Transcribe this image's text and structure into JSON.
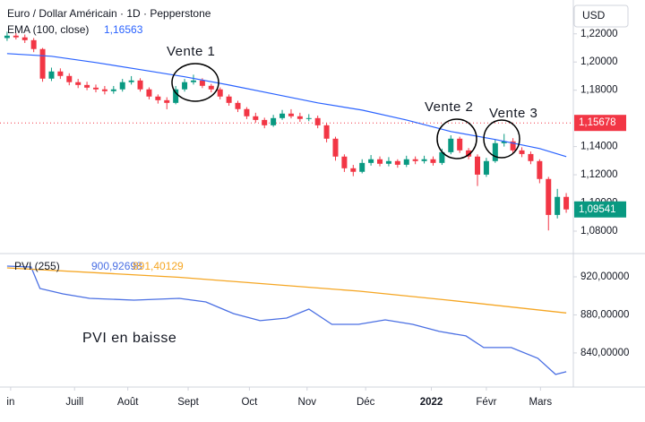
{
  "chart_data": [
    {
      "type": "candlestick",
      "title": "Euro / Dollar Américain · 1D · Pepperstone",
      "currency": "USD",
      "open": [
        1.217,
        1.2187,
        1.2175,
        1.2155,
        1.2092,
        1.1882,
        1.1933,
        1.1901,
        1.1857,
        1.1837,
        1.1818,
        1.1806,
        1.1793,
        1.1806,
        1.1857,
        1.1869,
        1.1806,
        1.1755,
        1.1729,
        1.171,
        1.1806,
        1.1857,
        1.1869,
        1.1831,
        1.1806,
        1.1755,
        1.171,
        1.1666,
        1.1615,
        1.1589,
        1.1551,
        1.1602,
        1.1634,
        1.1615,
        1.1596,
        1.1602,
        1.1551,
        1.1456,
        1.1329,
        1.1246,
        1.1221,
        1.1284,
        1.131,
        1.1278,
        1.1297,
        1.1271,
        1.131,
        1.1297,
        1.131,
        1.1284,
        1.136,
        1.1456,
        1.1373,
        1.1329,
        1.1201,
        1.1297,
        1.1424,
        1.1437,
        1.1373,
        1.1347,
        1.1297,
        1.117,
        1.0915,
        1.1043
      ],
      "high": [
        1.2215,
        1.2205,
        1.2195,
        1.217,
        1.21,
        1.196,
        1.1955,
        1.192,
        1.188,
        1.186,
        1.184,
        1.183,
        1.183,
        1.188,
        1.19,
        1.1885,
        1.182,
        1.177,
        1.175,
        1.183,
        1.188,
        1.191,
        1.1885,
        1.1845,
        1.182,
        1.177,
        1.1725,
        1.168,
        1.164,
        1.1605,
        1.1625,
        1.166,
        1.1665,
        1.164,
        1.163,
        1.162,
        1.1565,
        1.147,
        1.1345,
        1.127,
        1.131,
        1.134,
        1.133,
        1.1325,
        1.131,
        1.1335,
        1.133,
        1.1335,
        1.133,
        1.1385,
        1.148,
        1.147,
        1.139,
        1.1345,
        1.132,
        1.145,
        1.149,
        1.146,
        1.1395,
        1.1365,
        1.131,
        1.1185,
        1.11,
        1.107
      ],
      "low": [
        1.215,
        1.216,
        1.2135,
        1.207,
        1.186,
        1.1865,
        1.188,
        1.1835,
        1.1815,
        1.18,
        1.1785,
        1.177,
        1.1775,
        1.179,
        1.184,
        1.179,
        1.1735,
        1.1705,
        1.1665,
        1.17,
        1.179,
        1.184,
        1.1815,
        1.1785,
        1.1735,
        1.169,
        1.1645,
        1.1595,
        1.157,
        1.153,
        1.154,
        1.159,
        1.16,
        1.1575,
        1.158,
        1.153,
        1.143,
        1.13,
        1.122,
        1.119,
        1.121,
        1.1265,
        1.126,
        1.126,
        1.125,
        1.1255,
        1.1275,
        1.128,
        1.1265,
        1.127,
        1.1345,
        1.1355,
        1.131,
        1.112,
        1.1185,
        1.1285,
        1.14,
        1.1355,
        1.1325,
        1.1275,
        1.114,
        1.0805,
        1.089,
        1.093
      ],
      "close": [
        1.2187,
        1.2175,
        1.2155,
        1.2092,
        1.1882,
        1.1933,
        1.1901,
        1.1857,
        1.1837,
        1.1818,
        1.1806,
        1.1793,
        1.1806,
        1.1857,
        1.1869,
        1.1806,
        1.1755,
        1.1729,
        1.171,
        1.1806,
        1.1857,
        1.1869,
        1.1831,
        1.1806,
        1.1755,
        1.171,
        1.1666,
        1.1615,
        1.1589,
        1.1551,
        1.1602,
        1.1634,
        1.1615,
        1.1596,
        1.1602,
        1.1551,
        1.1456,
        1.1329,
        1.1246,
        1.1221,
        1.1284,
        1.131,
        1.1278,
        1.1297,
        1.1271,
        1.131,
        1.1297,
        1.131,
        1.1284,
        1.136,
        1.1456,
        1.1373,
        1.1329,
        1.1201,
        1.1297,
        1.1424,
        1.1437,
        1.1373,
        1.1347,
        1.1297,
        1.117,
        1.0915,
        1.1043,
        1.09541
      ],
      "up_color": "#089981",
      "down_color": "#f23645",
      "xlim": [
        -0.8,
        63.8
      ],
      "xticks": [
        {
          "value": 0.4,
          "label": "in"
        },
        {
          "value": 7.6,
          "label": "Juill"
        },
        {
          "value": 13.6,
          "label": "Août"
        },
        {
          "value": 20.4,
          "label": "Sept"
        },
        {
          "value": 27.3,
          "label": "Oct"
        },
        {
          "value": 33.8,
          "label": "Nov"
        },
        {
          "value": 40.4,
          "label": "Déc"
        },
        {
          "value": 47.8,
          "label": "2022"
        },
        {
          "value": 54.0,
          "label": "Févr"
        },
        {
          "value": 60.1,
          "label": "Mars"
        }
      ],
      "ylim": [
        1.066,
        1.244
      ],
      "yticks": [
        {
          "value": 1.22,
          "label": "1,22000"
        },
        {
          "value": 1.2,
          "label": "1,20000"
        },
        {
          "value": 1.18,
          "label": "1,18000"
        },
        {
          "value": 1.14,
          "label": "1,14000"
        },
        {
          "value": 1.12,
          "label": "1,12000"
        },
        {
          "value": 1.1,
          "label": "1,10000"
        },
        {
          "value": 1.08,
          "label": "1,08000"
        }
      ],
      "overlay": {
        "name": "EMA (100, close)",
        "legend_value": {
          "value": 1.16563,
          "label": "1,16563"
        },
        "color": "#2962ff",
        "x": [
          0,
          5,
          10,
          15,
          20,
          25,
          30,
          35,
          40,
          45,
          50,
          55,
          60,
          63
        ],
        "values": [
          1.206,
          1.2041,
          1.1996,
          1.1946,
          1.1895,
          1.1837,
          1.1774,
          1.171,
          1.1659,
          1.1589,
          1.1507,
          1.145,
          1.1386,
          1.1329
        ]
      },
      "current_price": {
        "value": 1.15678,
        "label": "1,15678",
        "color": "#f23645"
      },
      "last_price": {
        "value": 1.09541,
        "label": "1,09541",
        "color": "#089981"
      },
      "annotations": [
        "Vente 1",
        "Vente 2",
        "Vente 3"
      ]
    },
    {
      "type": "line",
      "title": "PVI (255)",
      "series": [
        {
          "color": "#4a6fe3",
          "legend_value": {
            "value": 900.92698,
            "label": "900,92698"
          },
          "x": [
            0,
            2.7,
            3.7,
            6.3,
            9.3,
            14.3,
            19.4,
            22.4,
            25.5,
            28.5,
            31.5,
            34,
            36.6,
            39.6,
            42.6,
            45.7,
            48.7,
            51.7,
            53.7,
            56.8,
            59.8,
            61.8,
            63
          ],
          "values": [
            931.3,
            930.4,
            907.8,
            902.1,
            897.4,
            895.5,
            897.4,
            893.6,
            881.4,
            873.9,
            876.7,
            886.1,
            870.1,
            870.1,
            874.8,
            870.1,
            862.6,
            857.9,
            845.7,
            845.7,
            834.4,
            817.4,
            820.2
          ]
        },
        {
          "color": "#f5a623",
          "legend_value": {
            "value": 891.40129,
            "label": "891,40129"
          },
          "x": [
            0,
            19.4,
            39.6,
            49.7,
            63
          ],
          "values": [
            929.4,
            919.5,
            905,
            895.5,
            882
          ]
        }
      ],
      "xlim": [
        -0.8,
        63.8
      ],
      "ylim": [
        806,
        944.5
      ],
      "yticks": [
        {
          "value": 920,
          "label": "920,00000"
        },
        {
          "value": 880,
          "label": "880,00000"
        },
        {
          "value": 840,
          "label": "840,00000"
        }
      ],
      "annotation": "PVI en baisse"
    }
  ]
}
